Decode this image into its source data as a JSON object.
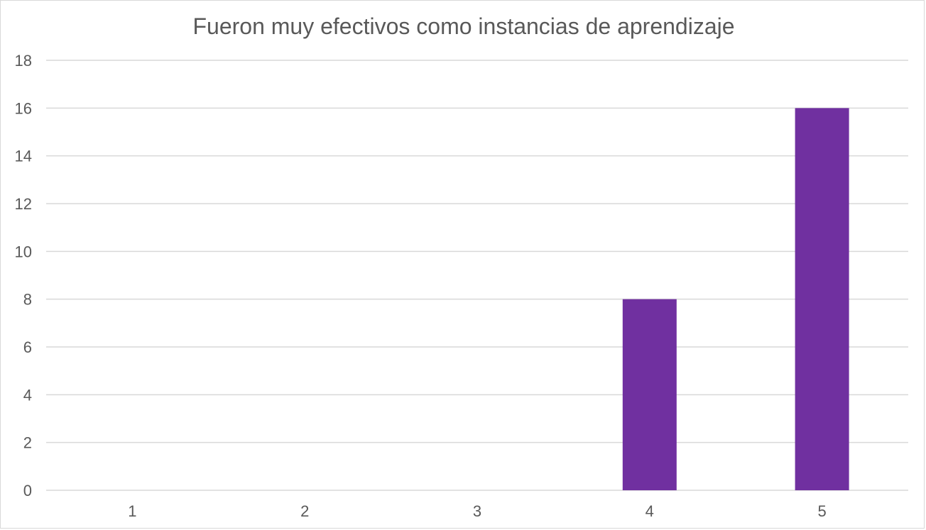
{
  "chart_data": {
    "type": "bar",
    "title": "Fueron muy efectivos como instancias de aprendizaje",
    "xlabel": "",
    "ylabel": "",
    "categories": [
      "1",
      "2",
      "3",
      "4",
      "5"
    ],
    "values": [
      0,
      0,
      0,
      8,
      16
    ],
    "ylim": [
      0,
      18
    ],
    "yticks": [
      0,
      2,
      4,
      6,
      8,
      10,
      12,
      14,
      16,
      18
    ],
    "grid": true,
    "legend": "none",
    "bar_color": "#7030A0",
    "grid_color": "#d9d9d9",
    "text_color": "#595959"
  }
}
